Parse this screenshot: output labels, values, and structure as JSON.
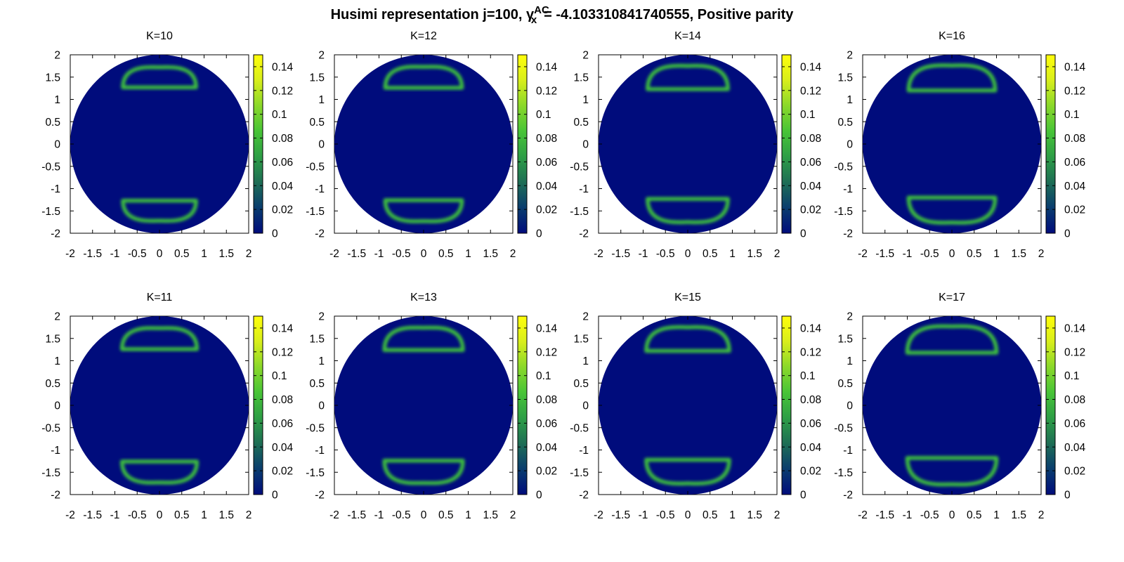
{
  "figure": {
    "title_prefix": "Husimi representation j=100, ",
    "title_gamma": "γ",
    "title_sub": "x",
    "title_sup": "AC",
    "title_suffix": "= -4.103310841740555, Positive parity"
  },
  "colors": {
    "background": "#ffffff",
    "disc_fill": "#000c7c",
    "ring": "#3cbf3c",
    "colormap": [
      "#000c7c",
      "#0a3d6e",
      "#1e6e55",
      "#2e9e46",
      "#48c437",
      "#8ad82a",
      "#d8ee1c",
      "#fffe0a"
    ]
  },
  "chart_data": [
    {
      "type": "heatmap",
      "title": "K=10",
      "xlim": [
        -2,
        2
      ],
      "ylim": [
        -2,
        2
      ],
      "xticks": [
        "-2",
        "-1.5",
        "-1",
        "-0.5",
        "0",
        "0.5",
        "1",
        "1.5",
        "2"
      ],
      "yticks": [
        "2",
        "1.5",
        "1",
        "0.5",
        "0",
        "-0.5",
        "-1",
        "-1.5",
        "-2"
      ],
      "colorbar": {
        "min": 0,
        "max": 0.15,
        "ticks": [
          "0",
          "0.02",
          "0.04",
          "0.06",
          "0.08",
          "0.1",
          "0.12",
          "0.14"
        ]
      },
      "support_radius": 2,
      "ring_intensity": 0.075,
      "rings": [
        {
          "center_y": 1.42,
          "y_top": 1.72,
          "y_flat": 1.27,
          "half_width": 0.82
        },
        {
          "center_y": -1.42,
          "y_top": -1.72,
          "y_flat": -1.27,
          "half_width": 0.82
        }
      ]
    },
    {
      "type": "heatmap",
      "title": "K=12",
      "xlim": [
        -2,
        2
      ],
      "ylim": [
        -2,
        2
      ],
      "xticks": [
        "-2",
        "-1.5",
        "-1",
        "-0.5",
        "0",
        "0.5",
        "1",
        "1.5",
        "2"
      ],
      "yticks": [
        "2",
        "1.5",
        "1",
        "0.5",
        "0",
        "-0.5",
        "-1",
        "-1.5",
        "-2"
      ],
      "colorbar": {
        "min": 0,
        "max": 0.15,
        "ticks": [
          "0",
          "0.02",
          "0.04",
          "0.06",
          "0.08",
          "0.1",
          "0.12",
          "0.14"
        ]
      },
      "support_radius": 2,
      "ring_intensity": 0.075,
      "rings": [
        {
          "center_y": 1.42,
          "y_top": 1.73,
          "y_flat": 1.26,
          "half_width": 0.86
        },
        {
          "center_y": -1.42,
          "y_top": -1.73,
          "y_flat": -1.26,
          "half_width": 0.86
        }
      ]
    },
    {
      "type": "heatmap",
      "title": "K=14",
      "xlim": [
        -2,
        2
      ],
      "ylim": [
        -2,
        2
      ],
      "xticks": [
        "-2",
        "-1.5",
        "-1",
        "-0.5",
        "0",
        "0.5",
        "1",
        "1.5",
        "2"
      ],
      "yticks": [
        "2",
        "1.5",
        "1",
        "0.5",
        "0",
        "-0.5",
        "-1",
        "-1.5",
        "-2"
      ],
      "colorbar": {
        "min": 0,
        "max": 0.15,
        "ticks": [
          "0",
          "0.02",
          "0.04",
          "0.06",
          "0.08",
          "0.1",
          "0.12",
          "0.14"
        ]
      },
      "support_radius": 2,
      "ring_intensity": 0.075,
      "rings": [
        {
          "center_y": 1.42,
          "y_top": 1.75,
          "y_flat": 1.23,
          "half_width": 0.9
        },
        {
          "center_y": -1.42,
          "y_top": -1.75,
          "y_flat": -1.23,
          "half_width": 0.9
        }
      ]
    },
    {
      "type": "heatmap",
      "title": "K=16",
      "xlim": [
        -2,
        2
      ],
      "ylim": [
        -2,
        2
      ],
      "xticks": [
        "-2",
        "-1.5",
        "-1",
        "-0.5",
        "0",
        "0.5",
        "1",
        "1.5",
        "2"
      ],
      "yticks": [
        "2",
        "1.5",
        "1",
        "0.5",
        "0",
        "-0.5",
        "-1",
        "-1.5",
        "-2"
      ],
      "colorbar": {
        "min": 0,
        "max": 0.15,
        "ticks": [
          "0",
          "0.02",
          "0.04",
          "0.06",
          "0.08",
          "0.1",
          "0.12",
          "0.14"
        ]
      },
      "support_radius": 2,
      "ring_intensity": 0.075,
      "rings": [
        {
          "center_y": 1.42,
          "y_top": 1.76,
          "y_flat": 1.2,
          "half_width": 0.97
        },
        {
          "center_y": -1.42,
          "y_top": -1.76,
          "y_flat": -1.2,
          "half_width": 0.97
        }
      ]
    },
    {
      "type": "heatmap",
      "title": "K=11",
      "xlim": [
        -2,
        2
      ],
      "ylim": [
        -2,
        2
      ],
      "xticks": [
        "-2",
        "-1.5",
        "-1",
        "-0.5",
        "0",
        "0.5",
        "1",
        "1.5",
        "2"
      ],
      "yticks": [
        "2",
        "1.5",
        "1",
        "0.5",
        "0",
        "-0.5",
        "-1",
        "-1.5",
        "-2"
      ],
      "colorbar": {
        "min": 0,
        "max": 0.15,
        "ticks": [
          "0",
          "0.02",
          "0.04",
          "0.06",
          "0.08",
          "0.1",
          "0.12",
          "0.14"
        ]
      },
      "support_radius": 2,
      "ring_intensity": 0.075,
      "rings": [
        {
          "center_y": 1.42,
          "y_top": 1.73,
          "y_flat": 1.26,
          "half_width": 0.84
        },
        {
          "center_y": -1.42,
          "y_top": -1.73,
          "y_flat": -1.26,
          "half_width": 0.84
        }
      ]
    },
    {
      "type": "heatmap",
      "title": "K=13",
      "xlim": [
        -2,
        2
      ],
      "ylim": [
        -2,
        2
      ],
      "xticks": [
        "-2",
        "-1.5",
        "-1",
        "-0.5",
        "0",
        "0.5",
        "1",
        "1.5",
        "2"
      ],
      "yticks": [
        "2",
        "1.5",
        "1",
        "0.5",
        "0",
        "-0.5",
        "-1",
        "-1.5",
        "-2"
      ],
      "colorbar": {
        "min": 0,
        "max": 0.15,
        "ticks": [
          "0",
          "0.02",
          "0.04",
          "0.06",
          "0.08",
          "0.1",
          "0.12",
          "0.14"
        ]
      },
      "support_radius": 2,
      "ring_intensity": 0.075,
      "rings": [
        {
          "center_y": 1.42,
          "y_top": 1.74,
          "y_flat": 1.24,
          "half_width": 0.88
        },
        {
          "center_y": -1.42,
          "y_top": -1.74,
          "y_flat": -1.24,
          "half_width": 0.88
        }
      ]
    },
    {
      "type": "heatmap",
      "title": "K=15",
      "xlim": [
        -2,
        2
      ],
      "ylim": [
        -2,
        2
      ],
      "xticks": [
        "-2",
        "-1.5",
        "-1",
        "-0.5",
        "0",
        "0.5",
        "1",
        "1.5",
        "2"
      ],
      "yticks": [
        "2",
        "1.5",
        "1",
        "0.5",
        "0",
        "-0.5",
        "-1",
        "-1.5",
        "-2"
      ],
      "colorbar": {
        "min": 0,
        "max": 0.15,
        "ticks": [
          "0",
          "0.02",
          "0.04",
          "0.06",
          "0.08",
          "0.1",
          "0.12",
          "0.14"
        ]
      },
      "support_radius": 2,
      "ring_intensity": 0.075,
      "rings": [
        {
          "center_y": 1.42,
          "y_top": 1.75,
          "y_flat": 1.22,
          "half_width": 0.93
        },
        {
          "center_y": -1.42,
          "y_top": -1.75,
          "y_flat": -1.22,
          "half_width": 0.93
        }
      ]
    },
    {
      "type": "heatmap",
      "title": "K=17",
      "xlim": [
        -2,
        2
      ],
      "ylim": [
        -2,
        2
      ],
      "xticks": [
        "-2",
        "-1.5",
        "-1",
        "-0.5",
        "0",
        "0.5",
        "1",
        "1.5",
        "2"
      ],
      "yticks": [
        "2",
        "1.5",
        "1",
        "0.5",
        "0",
        "-0.5",
        "-1",
        "-1.5",
        "-2"
      ],
      "colorbar": {
        "min": 0,
        "max": 0.15,
        "ticks": [
          "0",
          "0.02",
          "0.04",
          "0.06",
          "0.08",
          "0.1",
          "0.12",
          "0.14"
        ]
      },
      "support_radius": 2,
      "ring_intensity": 0.075,
      "rings": [
        {
          "center_y": 1.42,
          "y_top": 1.77,
          "y_flat": 1.18,
          "half_width": 1.0
        },
        {
          "center_y": -1.42,
          "y_top": -1.77,
          "y_flat": -1.18,
          "half_width": 1.0
        }
      ]
    }
  ]
}
